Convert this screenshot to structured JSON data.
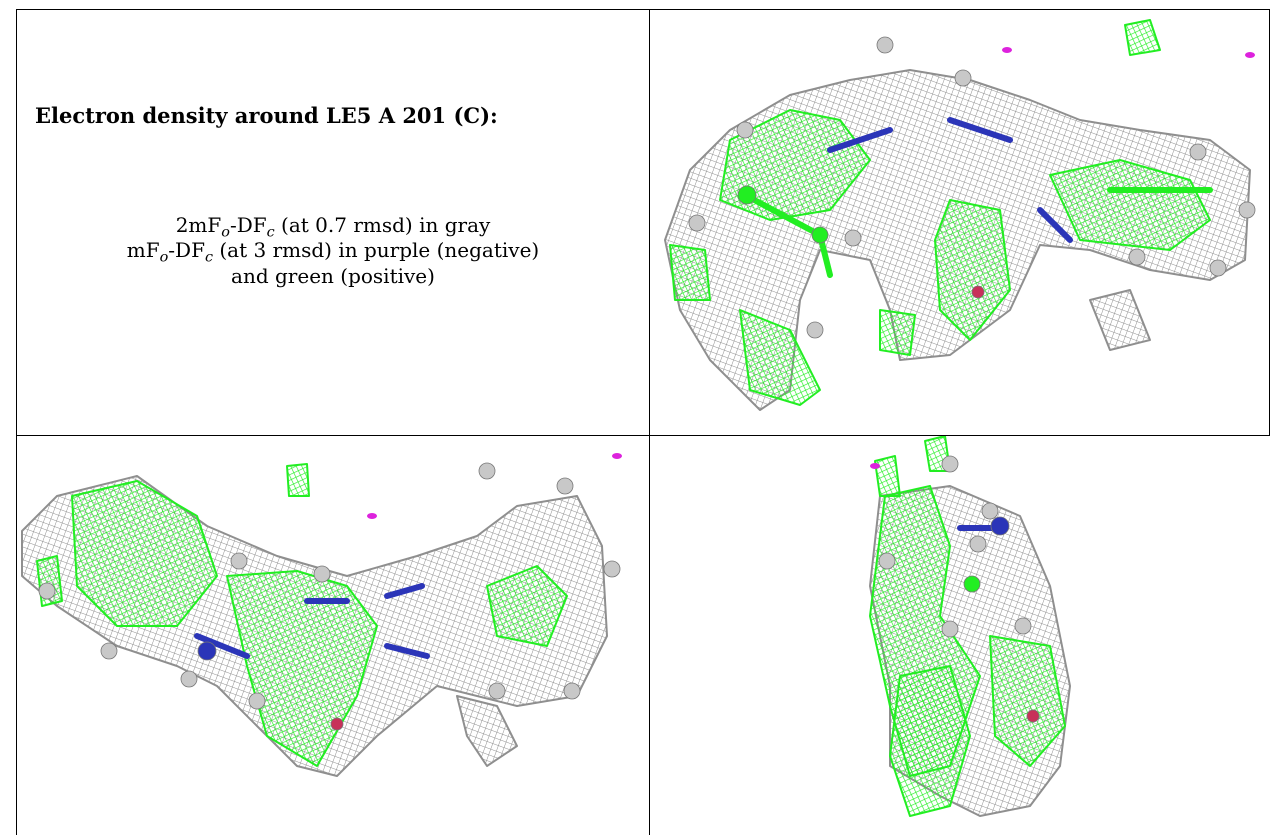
{
  "caption": {
    "title": "Electron density around LE5 A 201 (C):",
    "line1": {
      "a": "2mF",
      "o": "o",
      "b": "-DF",
      "c": "c",
      "tail": " (at 0.7 rmsd) in gray"
    },
    "line2": {
      "a": "mF",
      "o": "o",
      "b": "-DF",
      "c": "c",
      "tail": " (at 3 rmsd) in purple (negative)"
    },
    "line3": "and green (positive)"
  },
  "colors": {
    "mesh_2fofc": "#8f8f8f",
    "positive_density": "#22ee22",
    "negative_density": "#dd22dd",
    "carbon_atom": "#c8c8c8",
    "nitrogen_atom": "#2b35b8",
    "oxygen_atom": "#c8325a",
    "grid_line": "#000000"
  },
  "panels": [
    {
      "view": "top-right"
    },
    {
      "view": "bottom-left"
    },
    {
      "view": "bottom-right"
    }
  ]
}
